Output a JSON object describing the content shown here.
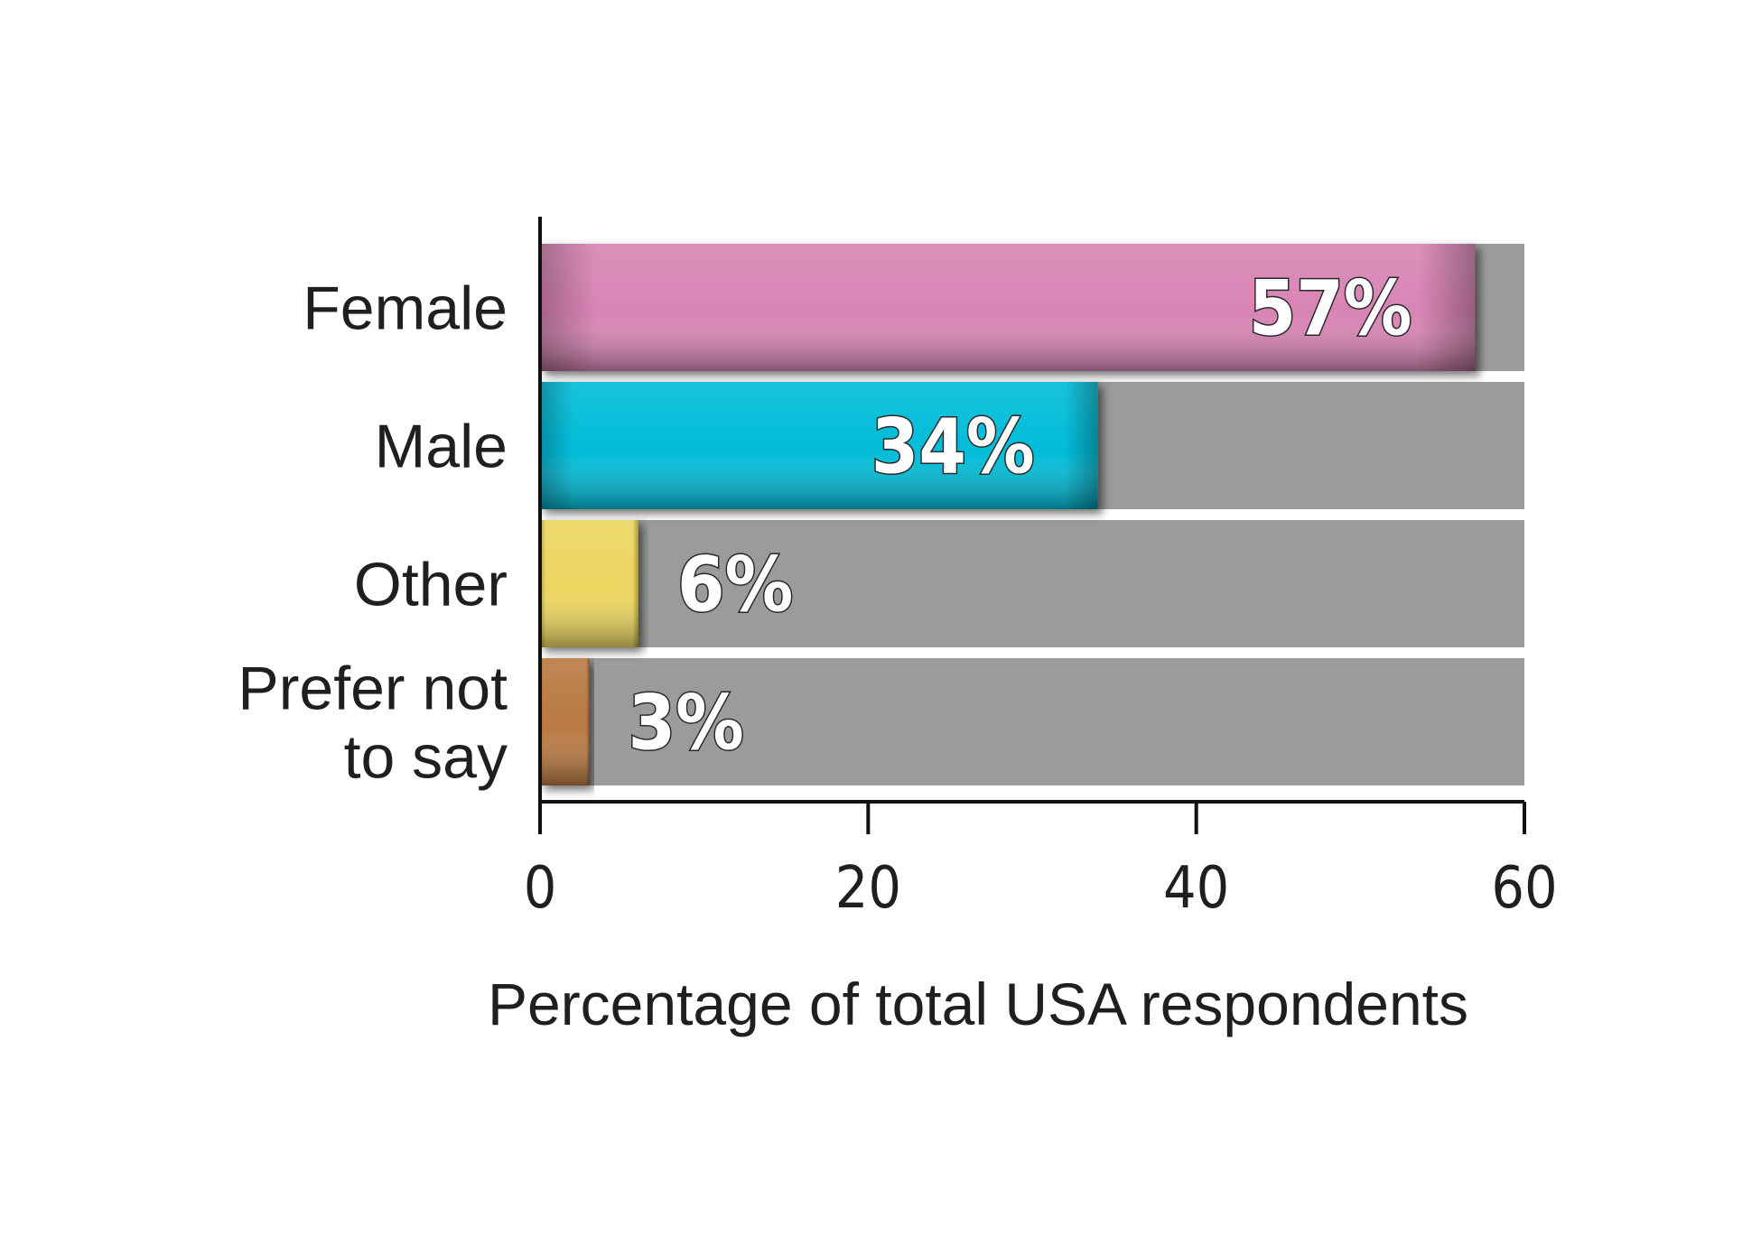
{
  "chart_data": {
    "type": "bar",
    "orientation": "horizontal",
    "title": "",
    "categories": [
      "Female",
      "Male",
      "Other",
      "Prefer not to say"
    ],
    "category_label_lines": [
      [
        "Female"
      ],
      [
        "Male"
      ],
      [
        "Other"
      ],
      [
        "Prefer not",
        "to say"
      ]
    ],
    "values": [
      57,
      34,
      6,
      3
    ],
    "value_labels": [
      "57%",
      "34%",
      "6%",
      "3%"
    ],
    "colors": [
      "#d884b4",
      "#00bcd8",
      "#ecd55f",
      "#b97943"
    ],
    "track_color": "#9b9b9b",
    "xlabel": "Percentage of total USA respondents",
    "ylabel": "",
    "xlim": [
      0,
      60
    ],
    "xticks": [
      0,
      20,
      40,
      60
    ],
    "xtick_labels": [
      "0",
      "20",
      "40",
      "60"
    ],
    "grid": false,
    "legend": "none"
  }
}
